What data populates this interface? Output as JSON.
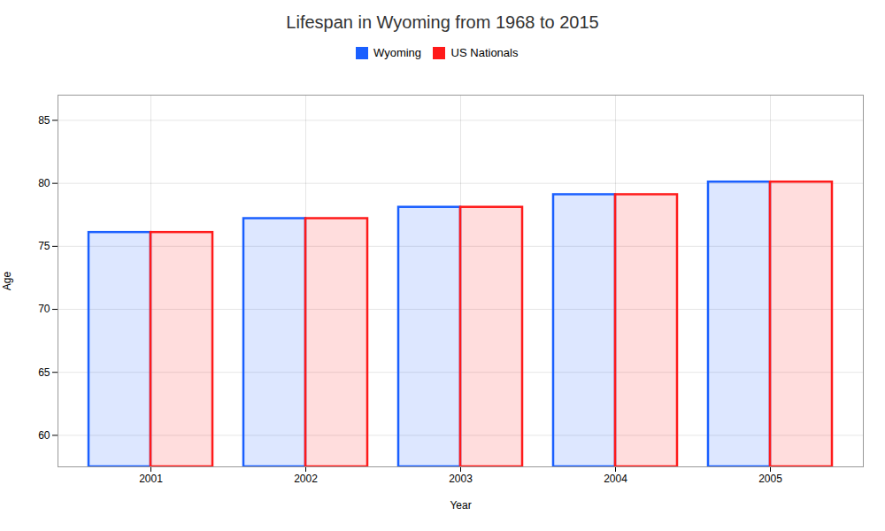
{
  "chart_data": {
    "type": "bar",
    "title": "Lifespan in Wyoming from 1968 to 2015",
    "xlabel": "Year",
    "ylabel": "Age",
    "categories": [
      "2001",
      "2002",
      "2003",
      "2004",
      "2005"
    ],
    "series": [
      {
        "name": "Wyoming",
        "color": "#1a5fff",
        "values": [
          76.1,
          77.2,
          78.1,
          79.1,
          80.1
        ]
      },
      {
        "name": "US Nationals",
        "color": "#ff1a1a",
        "values": [
          76.1,
          77.2,
          78.1,
          79.1,
          80.1
        ]
      }
    ],
    "ylim": [
      57.5,
      87
    ],
    "yticks": [
      60,
      65,
      70,
      75,
      80,
      85
    ],
    "grid": true,
    "legend": "top"
  }
}
